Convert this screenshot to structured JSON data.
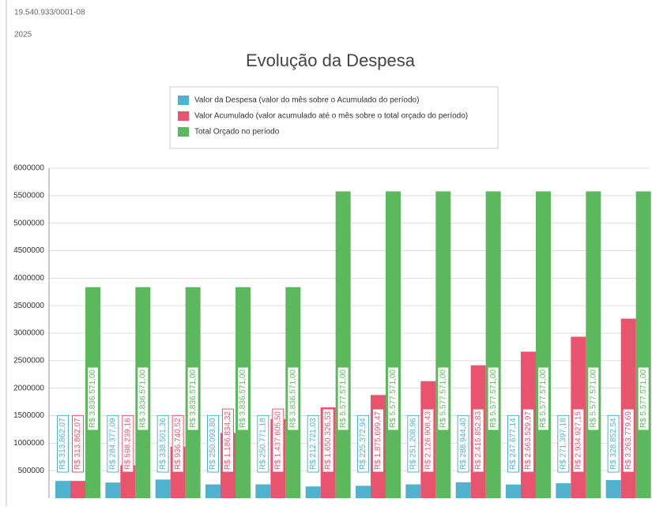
{
  "header": {
    "code": "19.540.933/0001-08",
    "year": "2025"
  },
  "chart_data": {
    "type": "bar",
    "title": "Evolução da Despesa",
    "categories": [
      null,
      null,
      null,
      null,
      null,
      null,
      null,
      null,
      null,
      null,
      null,
      null
    ],
    "series": [
      {
        "name": "Valor da Despesa (valor do mês sobre o Acumulado do período)",
        "color": "#4fb3cf",
        "values": [
          313862.07,
          284377.09,
          338501.36,
          250093.8,
          250771.18,
          212721.03,
          225372.94,
          251208.96,
          288944.4,
          247677.14,
          271397.18,
          328852.54
        ],
        "value_labels": [
          "R$ 313.862,07",
          "R$ 284.377,09",
          "R$ 338.501,36",
          "R$ 250.093,80",
          "R$ 250.771,18",
          "R$ 212.721,03",
          "R$ 225.372,94",
          "R$ 251.208,96",
          "R$ 288.944,40",
          "R$ 247.677,14",
          "R$ 271.397,18",
          "R$ 328.852,54"
        ]
      },
      {
        "name": "Valor Acumulado (valor acumulado até o mês sobre o total orçado do período)",
        "color": "#e8546e",
        "values": [
          313862.07,
          598239.16,
          936740.52,
          1186834.32,
          1437605.5,
          1650326.53,
          1875699.47,
          2126908.43,
          2415852.83,
          2663529.97,
          2934927.15,
          3263779.69
        ],
        "value_labels": [
          "R$ 313.862,07",
          "R$ 598.239,16",
          "R$ 936.740,52",
          "R$ 1.186.834,32",
          "R$ 1.437.605,50",
          "R$ 1.650.326,53",
          "R$ 1.875.699,47",
          "R$ 2.126.908,43",
          "R$ 2.415.852,83",
          "R$ 2.663.529,97",
          "R$ 2.934.927,15",
          "R$ 3.263.779,69"
        ]
      },
      {
        "name": "Total Orçado no período",
        "color": "#5cb85c",
        "values": [
          3836571.0,
          3836571.0,
          3836571.0,
          3836571.0,
          3836571.0,
          5577571.0,
          5577571.0,
          5577571.0,
          5577571.0,
          5577571.0,
          5577571.0,
          5577571.0
        ],
        "value_labels": [
          "R$ 3.836.571,00",
          "R$ 3.836.571,00",
          "R$ 3.836.571,00",
          "R$ 3.836.571,00",
          "R$ 3.836.571,00",
          "R$ 5.577.571,00",
          "R$ 5.577.571,00",
          "R$ 5.577.571,00",
          "R$ 5.577.571,00",
          "R$ 5.577.571,00",
          "R$ 5.577.571,00",
          "R$ 5.577.571,00"
        ]
      }
    ],
    "ylim": [
      0,
      6000000
    ],
    "yticks": [
      500000,
      1000000,
      1500000,
      2000000,
      2500000,
      3000000,
      3500000,
      4000000,
      4500000,
      5000000,
      5500000,
      6000000
    ],
    "grid": true
  }
}
